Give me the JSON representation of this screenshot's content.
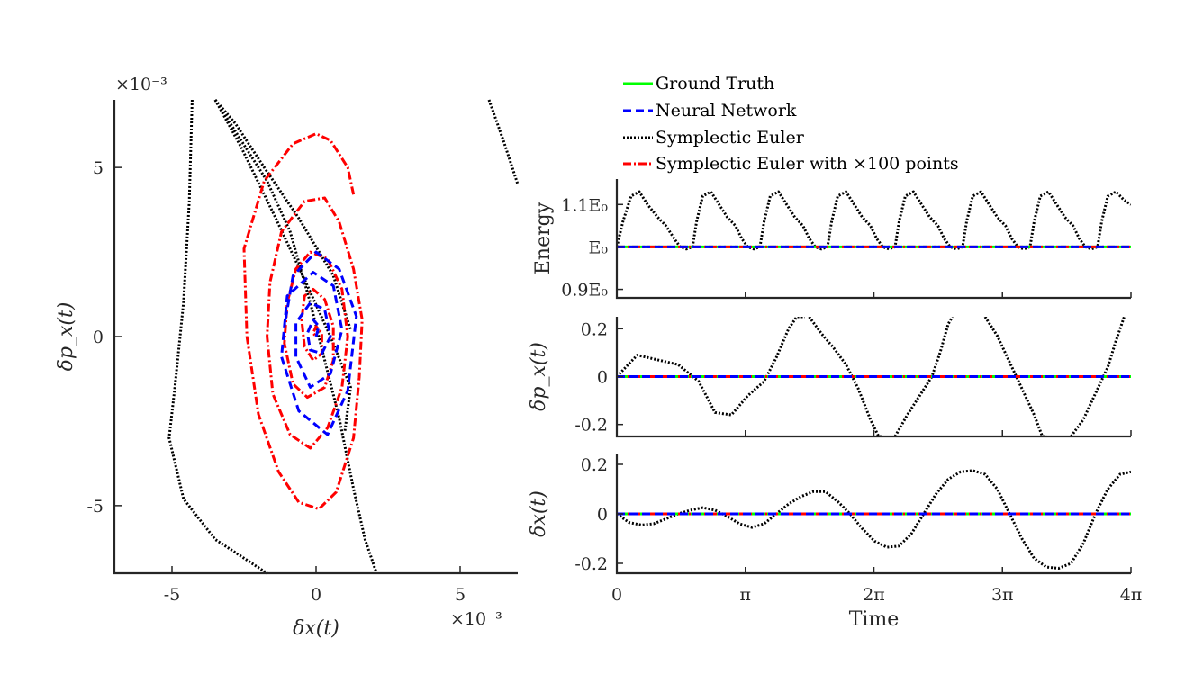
{
  "colors": {
    "ground_truth": "#00ff00",
    "neural_network": "#0000ff",
    "symplectic_euler": "#000000",
    "symplectic_euler_100": "#ff0000",
    "axes": "#262626"
  },
  "legend": {
    "placement": "top-right",
    "entries": [
      "Ground Truth",
      "Neural Network",
      "Symplectic Euler",
      "Symplectic Euler with ×100 points"
    ]
  },
  "chart_data": [
    {
      "type": "line",
      "xlabel": "δx(t)",
      "ylabel": "δp_x(t)",
      "x_exponent": "×10⁻³",
      "y_exponent": "×10⁻³",
      "xlim": [
        -7,
        7
      ],
      "ylim": [
        -7,
        7
      ],
      "x_ticks": [
        -5,
        0,
        5
      ],
      "y_ticks": [
        -5,
        0,
        5
      ],
      "x_tick_labels": [
        "-5",
        "0",
        "5"
      ],
      "y_tick_labels": [
        "-5",
        "0",
        "5"
      ],
      "series": [
        {
          "name": "Neural Network",
          "style": "dashed",
          "points": [
            [
              0.0,
              0.0
            ],
            [
              0.1,
              0.3
            ],
            [
              -0.1,
              0.5
            ],
            [
              -0.3,
              0.1
            ],
            [
              -0.2,
              -0.4
            ],
            [
              0.2,
              -0.5
            ],
            [
              0.5,
              0.0
            ],
            [
              0.3,
              0.8
            ],
            [
              -0.2,
              1.0
            ],
            [
              -0.7,
              0.4
            ],
            [
              -0.7,
              -0.6
            ],
            [
              -0.2,
              -1.5
            ],
            [
              0.5,
              -1.1
            ],
            [
              0.9,
              0.2
            ],
            [
              0.6,
              1.5
            ],
            [
              -0.1,
              1.9
            ],
            [
              -1.0,
              1.2
            ],
            [
              -1.2,
              -0.6
            ],
            [
              -0.6,
              -2.2
            ],
            [
              0.4,
              -2.9
            ],
            [
              1.1,
              -1.6
            ],
            [
              1.4,
              0.6
            ],
            [
              0.8,
              2.0
            ],
            [
              0.0,
              2.5
            ],
            [
              -0.8,
              1.8
            ],
            [
              -1.1,
              0.3
            ]
          ]
        },
        {
          "name": "Symplectic Euler",
          "style": "dotted",
          "curves": [
            [
              [
                -4.3,
                7.0
              ],
              [
                -4.4,
                4.0
              ],
              [
                -4.6,
                1.0
              ],
              [
                -4.9,
                -1.5
              ],
              [
                -5.1,
                -3.0
              ],
              [
                -4.6,
                -4.8
              ],
              [
                -3.5,
                -6.0
              ],
              [
                -1.7,
                -7.0
              ]
            ],
            [
              [
                -3.5,
                7.0
              ],
              [
                -2.6,
                5.8
              ],
              [
                -1.7,
                4.6
              ],
              [
                -0.9,
                3.1
              ],
              [
                -0.2,
                1.0
              ],
              [
                0.3,
                -0.7
              ],
              [
                0.8,
                -2.4
              ],
              [
                1.3,
                -4.5
              ],
              [
                1.7,
                -6.0
              ],
              [
                2.1,
                -7.0
              ]
            ],
            [
              [
                -3.5,
                7.0
              ],
              [
                -2.8,
                6.3
              ],
              [
                -1.8,
                5.0
              ],
              [
                -0.6,
                3.5
              ],
              [
                0.6,
                1.8
              ],
              [
                1.2,
                0.2
              ]
            ],
            [
              [
                -3.5,
                7.0
              ],
              [
                -2.6,
                5.6
              ],
              [
                -1.4,
                3.5
              ],
              [
                -0.3,
                1.5
              ],
              [
                0.5,
                0.0
              ],
              [
                1.2,
                -1.5
              ],
              [
                1.0,
                -2.8
              ]
            ],
            [
              [
                6.0,
                7.0
              ],
              [
                6.5,
                5.8
              ],
              [
                7.0,
                4.5
              ]
            ]
          ]
        },
        {
          "name": "Symplectic Euler with ×100 points",
          "style": "dashdot",
          "points": [
            [
              1.3,
              4.2
            ],
            [
              1.1,
              5.0
            ],
            [
              0.5,
              5.8
            ],
            [
              0.0,
              6.0
            ],
            [
              -0.8,
              5.7
            ],
            [
              -1.8,
              4.6
            ],
            [
              -2.5,
              2.6
            ],
            [
              -2.4,
              0.0
            ],
            [
              -2.0,
              -2.3
            ],
            [
              -1.3,
              -4.0
            ],
            [
              -0.6,
              -4.9
            ],
            [
              0.1,
              -5.1
            ],
            [
              0.7,
              -4.6
            ],
            [
              1.3,
              -3.0
            ],
            [
              1.5,
              -1.2
            ],
            [
              1.6,
              0.5
            ],
            [
              1.3,
              2.0
            ],
            [
              0.8,
              3.4
            ],
            [
              0.3,
              4.1
            ],
            [
              -0.4,
              4.0
            ],
            [
              -1.2,
              3.1
            ],
            [
              -1.6,
              1.6
            ],
            [
              -1.7,
              0.0
            ],
            [
              -1.5,
              -1.7
            ],
            [
              -0.9,
              -2.9
            ],
            [
              -0.2,
              -3.3
            ],
            [
              0.4,
              -2.7
            ],
            [
              0.9,
              -1.5
            ],
            [
              1.1,
              0.0
            ],
            [
              0.9,
              1.4
            ],
            [
              0.4,
              2.3
            ],
            [
              -0.2,
              2.5
            ],
            [
              -0.7,
              2.0
            ],
            [
              -1.0,
              1.0
            ],
            [
              -1.1,
              -0.2
            ],
            [
              -0.8,
              -1.4
            ],
            [
              -0.3,
              -1.8
            ],
            [
              0.3,
              -1.5
            ],
            [
              0.6,
              -0.7
            ],
            [
              0.6,
              0.3
            ],
            [
              0.3,
              1.1
            ],
            [
              -0.1,
              1.4
            ],
            [
              -0.4,
              1.2
            ],
            [
              -0.5,
              0.5
            ],
            [
              -0.4,
              -0.3
            ],
            [
              -0.1,
              -0.7
            ],
            [
              0.2,
              -0.5
            ],
            [
              0.2,
              0.1
            ],
            [
              0.0,
              0.3
            ],
            [
              -0.1,
              0.1
            ],
            [
              0.0,
              0.0
            ]
          ]
        }
      ]
    },
    {
      "type": "line",
      "ylabel": "Energy",
      "y_tick_labels": [
        "1.1E₀",
        "E₀",
        "0.9E₀"
      ],
      "ylim": [
        0.88,
        1.16
      ],
      "xlim": [
        0,
        12.566
      ],
      "series": [
        {
          "name": "Ground Truth",
          "style": "solid",
          "x": [
            0,
            12.566
          ],
          "y": [
            1.0,
            1.0
          ]
        },
        {
          "name": "Neural Network",
          "style": "dashed",
          "x": [
            0,
            12.566
          ],
          "y": [
            1.0,
            1.0
          ]
        },
        {
          "name": "Symplectic Euler with ×100 points",
          "style": "dashdot",
          "x": [
            0,
            12.566
          ],
          "y": [
            1.0,
            1.0
          ]
        },
        {
          "name": "Symplectic Euler",
          "style": "dotted",
          "x": [
            0,
            0.15,
            0.35,
            0.55,
            0.75,
            1.0,
            1.2,
            1.4,
            1.55,
            1.7,
            1.85,
            1.95,
            2.1,
            2.3,
            2.5,
            2.7,
            2.9,
            3.05,
            3.2,
            3.35,
            3.5,
            3.6,
            3.75,
            3.95,
            4.15,
            4.35,
            4.55,
            4.7,
            4.85,
            5.0,
            5.15,
            5.25,
            5.4,
            5.6,
            5.8,
            6.0,
            6.2,
            6.35,
            6.5,
            6.65,
            6.8,
            6.9,
            7.05,
            7.25,
            7.45,
            7.65,
            7.85,
            8.0,
            8.15,
            8.3,
            8.45,
            8.55,
            8.7,
            8.9,
            9.1,
            9.3,
            9.5,
            9.65,
            9.8,
            9.95,
            10.1,
            10.2,
            10.35,
            10.55,
            10.75,
            10.95,
            11.15,
            11.3,
            11.45,
            11.6,
            11.75,
            11.85,
            12.0,
            12.2,
            12.4,
            12.566
          ],
          "y": [
            1.0,
            1.06,
            1.12,
            1.13,
            1.1,
            1.07,
            1.05,
            1.02,
            1.0,
            0.995,
            1.0,
            1.06,
            1.12,
            1.13,
            1.1,
            1.07,
            1.05,
            1.02,
            1.0,
            0.995,
            1.0,
            1.06,
            1.12,
            1.13,
            1.1,
            1.07,
            1.05,
            1.02,
            1.0,
            0.995,
            1.0,
            1.06,
            1.12,
            1.13,
            1.1,
            1.07,
            1.05,
            1.02,
            1.0,
            0.995,
            1.0,
            1.06,
            1.12,
            1.13,
            1.1,
            1.07,
            1.05,
            1.02,
            1.0,
            0.995,
            1.0,
            1.06,
            1.12,
            1.13,
            1.1,
            1.07,
            1.05,
            1.02,
            1.0,
            0.995,
            1.0,
            1.06,
            1.12,
            1.13,
            1.1,
            1.07,
            1.05,
            1.02,
            1.0,
            0.995,
            1.0,
            1.06,
            1.12,
            1.13,
            1.11,
            1.1
          ]
        }
      ]
    },
    {
      "type": "line",
      "ylabel": "δp_x(t)",
      "y_ticks": [
        0.2,
        0,
        -0.2
      ],
      "y_tick_labels": [
        "0.2",
        "0",
        "-0.2"
      ],
      "ylim": [
        -0.25,
        0.25
      ],
      "xlim": [
        0,
        12.566
      ],
      "series": [
        {
          "name": "Ground Truth",
          "style": "solid",
          "x": [
            0,
            12.566
          ],
          "y": [
            0,
            0
          ]
        },
        {
          "name": "Neural Network",
          "style": "dashed",
          "x": [
            0,
            12.566
          ],
          "y": [
            0,
            0
          ]
        },
        {
          "name": "Symplectic Euler with ×100 points",
          "style": "dashdot",
          "x": [
            0,
            12.566
          ],
          "y": [
            0,
            0
          ]
        },
        {
          "name": "Symplectic Euler",
          "style": "dotted",
          "segments": [
            {
              "x": [
                0,
                0.5,
                1.0,
                1.5,
                2.0,
                2.4,
                2.8,
                3.2,
                3.6,
                3.9,
                4.2,
                4.4,
                4.6
              ],
              "y": [
                0,
                0.09,
                0.07,
                0.05,
                -0.02,
                -0.15,
                -0.16,
                -0.08,
                -0.02,
                0.08,
                0.2,
                0.25,
                0.25
              ]
            },
            {
              "x": [
                4.7,
                5.0,
                5.3,
                5.6,
                5.9,
                6.2,
                6.4,
                6.5
              ],
              "y": [
                0.25,
                0.18,
                0.12,
                0.05,
                -0.05,
                -0.18,
                -0.25,
                -0.25
              ]
            },
            {
              "x": [
                6.8,
                7.1,
                7.4,
                7.7,
                7.9,
                8.1,
                8.2
              ],
              "y": [
                -0.25,
                -0.16,
                -0.08,
                0.0,
                0.1,
                0.22,
                0.25
              ]
            },
            {
              "x": [
                9.0,
                9.3,
                9.6,
                9.9,
                10.2,
                10.4,
                10.5
              ],
              "y": [
                0.25,
                0.17,
                0.06,
                -0.05,
                -0.16,
                -0.25,
                -0.25
              ]
            },
            {
              "x": [
                11.1,
                11.4,
                11.7,
                12.0,
                12.2,
                12.4
              ],
              "y": [
                -0.25,
                -0.18,
                -0.07,
                0.04,
                0.15,
                0.25
              ]
            }
          ]
        }
      ]
    },
    {
      "type": "line",
      "ylabel": "δx(t)",
      "xlabel": "Time",
      "x_ticks": [
        0,
        3.1416,
        6.2832,
        9.4248,
        12.566
      ],
      "x_tick_labels": [
        "0",
        "π",
        "2π",
        "3π",
        "4π"
      ],
      "y_ticks": [
        0.2,
        0,
        -0.2
      ],
      "y_tick_labels": [
        "0.2",
        "0",
        "-0.2"
      ],
      "ylim": [
        -0.24,
        0.24
      ],
      "xlim": [
        0,
        12.566
      ],
      "series": [
        {
          "name": "Ground Truth",
          "style": "solid",
          "x": [
            0,
            12.566
          ],
          "y": [
            0,
            0
          ]
        },
        {
          "name": "Neural Network",
          "style": "dashed",
          "x": [
            0,
            12.566
          ],
          "y": [
            0,
            0
          ]
        },
        {
          "name": "Symplectic Euler with ×100 points",
          "style": "dashdot",
          "x": [
            0,
            12.566
          ],
          "y": [
            0,
            0
          ]
        },
        {
          "name": "Symplectic Euler",
          "style": "dotted",
          "x": [
            0,
            0.3,
            0.6,
            0.9,
            1.2,
            1.5,
            1.8,
            2.1,
            2.4,
            2.7,
            3.0,
            3.3,
            3.6,
            3.9,
            4.2,
            4.5,
            4.8,
            5.1,
            5.4,
            5.7,
            6.0,
            6.3,
            6.6,
            6.9,
            7.2,
            7.5,
            7.8,
            8.1,
            8.4,
            8.7,
            9.0,
            9.3,
            9.6,
            9.9,
            10.2,
            10.5,
            10.8,
            11.1,
            11.4,
            11.7,
            12.0,
            12.3,
            12.566
          ],
          "y": [
            0,
            -0.035,
            -0.045,
            -0.04,
            -0.02,
            0.0,
            0.015,
            0.025,
            0.015,
            -0.01,
            -0.04,
            -0.055,
            -0.04,
            0.0,
            0.04,
            0.07,
            0.09,
            0.09,
            0.05,
            0.0,
            -0.06,
            -0.11,
            -0.135,
            -0.13,
            -0.08,
            0.0,
            0.08,
            0.14,
            0.17,
            0.175,
            0.16,
            0.1,
            0.0,
            -0.1,
            -0.18,
            -0.215,
            -0.22,
            -0.2,
            -0.12,
            0.0,
            0.1,
            0.16,
            0.17
          ]
        }
      ]
    }
  ]
}
